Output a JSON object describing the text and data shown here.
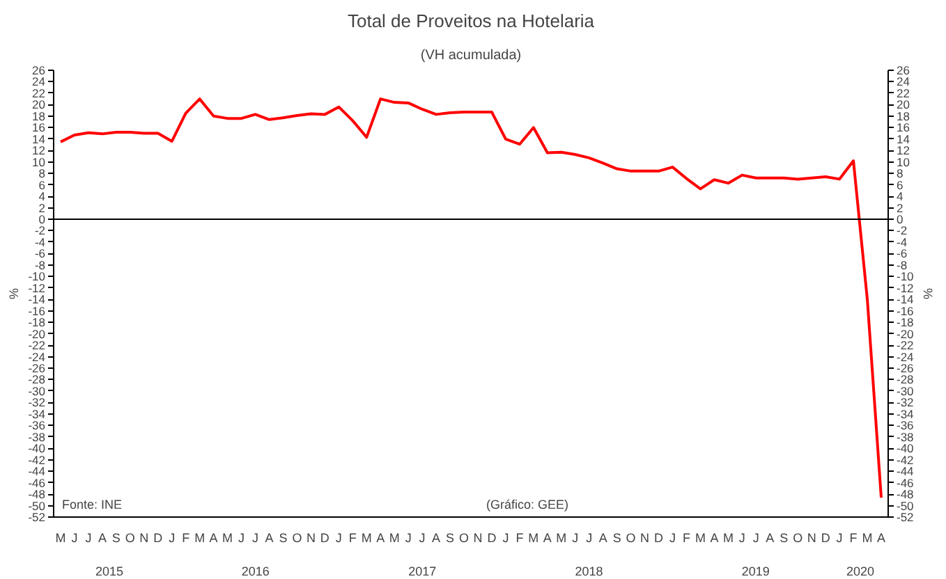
{
  "chart_data": {
    "type": "line",
    "title": "Total de Proveitos na Hotelaria",
    "subtitle": "(VH acumulada)",
    "ylabel": "%",
    "y2label": "%",
    "annotations": [
      "Fonte: INE",
      "(Gráfico: GEE)"
    ],
    "categories": [
      "M",
      "J",
      "J",
      "A",
      "S",
      "O",
      "N",
      "D",
      "J",
      "F",
      "M",
      "A",
      "M",
      "J",
      "J",
      "A",
      "S",
      "O",
      "N",
      "D",
      "J",
      "F",
      "M",
      "A",
      "M",
      "J",
      "J",
      "A",
      "S",
      "O",
      "N",
      "D",
      "J",
      "F",
      "M",
      "A",
      "M",
      "J",
      "J",
      "A",
      "S",
      "O",
      "N",
      "D",
      "J",
      "F",
      "M",
      "A",
      "M",
      "J",
      "J",
      "A",
      "S",
      "O",
      "N",
      "D",
      "J",
      "F",
      "M",
      "A"
    ],
    "series": [
      {
        "color": "#ff0000",
        "values": [
          13.5,
          14.7,
          15.1,
          14.9,
          15.2,
          15.2,
          15.0,
          15.0,
          13.6,
          18.5,
          21.0,
          18.0,
          17.6,
          17.6,
          18.3,
          17.4,
          17.7,
          18.1,
          18.4,
          18.3,
          19.6,
          17.2,
          14.3,
          21.0,
          20.4,
          20.3,
          19.2,
          18.3,
          18.6,
          18.7,
          18.7,
          18.7,
          14.0,
          13.1,
          16.0,
          11.6,
          11.7,
          11.3,
          10.7,
          9.8,
          8.8,
          8.4,
          8.4,
          8.4,
          9.1,
          7.1,
          5.3,
          6.9,
          6.3,
          7.7,
          7.2,
          7.2,
          7.2,
          7.0,
          7.2,
          7.4,
          7.0,
          10.2,
          -14,
          -48.6
        ]
      }
    ],
    "x2lim": [
      "2015-04-16",
      "2020-04-16"
    ],
    "x2ticks": [
      {
        "value": "2015-08-16",
        "label": "2015"
      },
      {
        "value": "2016-07-01",
        "label": "2016"
      },
      {
        "value": "2017-07-01",
        "label": "2017"
      },
      {
        "value": "2018-07-01",
        "label": "2018"
      },
      {
        "value": "2019-07-01",
        "label": "2019"
      },
      {
        "value": "2020-02-15",
        "label": "2020"
      }
    ],
    "ylim": [
      -52,
      26
    ],
    "yticks": [
      -52,
      -50,
      -48,
      -46,
      -44,
      -42,
      -40,
      -38,
      -36,
      -34,
      -32,
      -30,
      -28,
      -26,
      -24,
      -22,
      -20,
      -18,
      -16,
      -14,
      -12,
      -10,
      -8,
      -6,
      -4,
      -2,
      0,
      2,
      4,
      6,
      8,
      10,
      12,
      14,
      16,
      18,
      20,
      22,
      24,
      26
    ],
    "y2lim": [
      -52,
      26
    ],
    "y2ticks": [
      -52,
      -50,
      -48,
      -46,
      -44,
      -42,
      -40,
      -38,
      -36,
      -34,
      -32,
      -30,
      -28,
      -26,
      -24,
      -22,
      -20,
      -18,
      -16,
      -14,
      -12,
      -10,
      -8,
      -6,
      -4,
      -2,
      0,
      2,
      4,
      6,
      8,
      10,
      12,
      14,
      16,
      18,
      20,
      22,
      24,
      26
    ],
    "ref_lines": [
      {
        "axis": "y",
        "value": 0,
        "color": "#000000"
      }
    ]
  }
}
